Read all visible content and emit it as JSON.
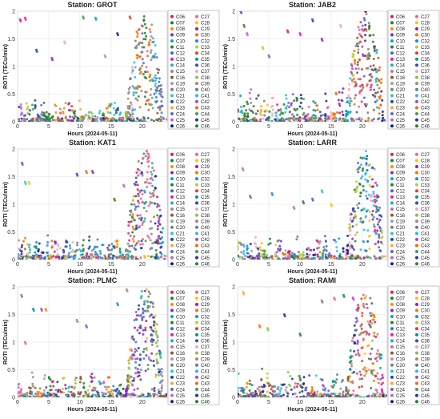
{
  "chart_data": {
    "type": "scatter",
    "xlabel": "Hours (2024-05-11)",
    "ylabel": "ROTI (TECu/min)",
    "xlim": [
      0,
      24
    ],
    "ylim": [
      0,
      2
    ],
    "xticks": [
      0,
      5,
      10,
      15,
      20
    ],
    "yticks": [
      0,
      0.5,
      1,
      1.5,
      2
    ],
    "grid": true,
    "legend_position": "right",
    "legend_columns": 2,
    "panels": [
      {
        "title": "Station: GROT",
        "quiet_level": 0.3,
        "storm_peak": 1.95,
        "outliers": [
          [
            0.4,
            1.85
          ],
          [
            1.2,
            1.88
          ],
          [
            3.0,
            1.3
          ],
          [
            5.5,
            1.15
          ],
          [
            7.5,
            1.45
          ],
          [
            10.5,
            1.9
          ],
          [
            12.5,
            1.88
          ],
          [
            14.0,
            1.2
          ],
          [
            16.0,
            1.6
          ],
          [
            18.0,
            1.9
          ]
        ]
      },
      {
        "title": "Station: JAB2",
        "quiet_level": 0.5,
        "storm_peak": 2.0,
        "outliers": [
          [
            0.5,
            2.0
          ],
          [
            1.0,
            1.75
          ],
          [
            1.5,
            1.6
          ],
          [
            4.0,
            1.35
          ],
          [
            5.0,
            1.2
          ],
          [
            8.0,
            1.65
          ],
          [
            10.0,
            1.6
          ],
          [
            12.0,
            1.85
          ],
          [
            13.5,
            1.5
          ],
          [
            16.5,
            1.75
          ]
        ]
      },
      {
        "title": "Station: KAT1",
        "quiet_level": 0.35,
        "storm_peak": 2.0,
        "outliers": [
          [
            0.7,
            1.75
          ],
          [
            1.2,
            1.4
          ],
          [
            1.8,
            1.4
          ],
          [
            9.5,
            1.55
          ],
          [
            11.0,
            1.6
          ],
          [
            12.0,
            1.6
          ],
          [
            15.5,
            1.1
          ],
          [
            17.0,
            1.35
          ]
        ]
      },
      {
        "title": "Station: LARR",
        "quiet_level": 0.35,
        "storm_peak": 2.0,
        "outliers": [
          [
            0.8,
            1.65
          ],
          [
            2.0,
            1.15
          ],
          [
            5.5,
            1.2
          ],
          [
            9.0,
            0.95
          ],
          [
            10.5,
            1.05
          ],
          [
            12.0,
            1.1
          ],
          [
            13.5,
            1.25
          ],
          [
            15.0,
            1.0
          ]
        ]
      },
      {
        "title": "Station: PLMC",
        "quiet_level": 0.35,
        "storm_peak": 2.0,
        "outliers": [
          [
            0.6,
            1.85
          ],
          [
            1.2,
            1.0
          ],
          [
            2.5,
            1.6
          ],
          [
            3.8,
            1.6
          ],
          [
            4.5,
            1.6
          ],
          [
            9.5,
            1.4
          ],
          [
            11.0,
            1.3
          ],
          [
            16.0,
            1.7
          ],
          [
            17.5,
            1.95
          ]
        ]
      },
      {
        "title": "Station: RAMI",
        "quiet_level": 0.4,
        "storm_peak": 1.9,
        "outliers": [
          [
            0.9,
            1.9
          ],
          [
            3.5,
            1.3
          ],
          [
            4.8,
            1.25
          ],
          [
            7.5,
            1.5
          ],
          [
            10.0,
            1.15
          ],
          [
            13.5,
            1.75
          ],
          [
            15.5,
            1.8
          ],
          [
            17.0,
            1.85
          ],
          [
            18.5,
            1.8
          ]
        ]
      }
    ],
    "legend_entries": [
      {
        "name": "C06",
        "color": "#e6194b"
      },
      {
        "name": "C07",
        "color": "#0b8a2e"
      },
      {
        "name": "C08",
        "color": "#ff8c00"
      },
      {
        "name": "C09",
        "color": "#7b2fbf"
      },
      {
        "name": "C10",
        "color": "#00a7c4"
      },
      {
        "name": "C11",
        "color": "#2e7d32"
      },
      {
        "name": "C12",
        "color": "#4363d8"
      },
      {
        "name": "C13",
        "color": "#ff1493"
      },
      {
        "name": "C14",
        "color": "#1fb5ad"
      },
      {
        "name": "C15",
        "color": "#b07aa1"
      },
      {
        "name": "C16",
        "color": "#8b5a2b"
      },
      {
        "name": "C19",
        "color": "#9aa0a6"
      },
      {
        "name": "C20",
        "color": "#7f7f7f"
      },
      {
        "name": "C21",
        "color": "#26c6da"
      },
      {
        "name": "C22",
        "color": "#1b4f9c"
      },
      {
        "name": "C23",
        "color": "#ffa726"
      },
      {
        "name": "C24",
        "color": "#5c6bc0"
      },
      {
        "name": "C25",
        "color": "#ba68c8"
      },
      {
        "name": "C26",
        "color": "#1a237e"
      },
      {
        "name": "C27",
        "color": "#f06292"
      },
      {
        "name": "C28",
        "color": "#ffc107"
      },
      {
        "name": "C29",
        "color": "#8e24aa"
      },
      {
        "name": "C30",
        "color": "#ff6f00"
      },
      {
        "name": "C32",
        "color": "#1e88e5"
      },
      {
        "name": "C33",
        "color": "#c0ca33"
      },
      {
        "name": "C34",
        "color": "#e53935"
      },
      {
        "name": "C35",
        "color": "#009688"
      },
      {
        "name": "C36",
        "color": "#3949ab"
      },
      {
        "name": "C37",
        "color": "#f4a6c1"
      },
      {
        "name": "C38",
        "color": "#8bc34a"
      },
      {
        "name": "C39",
        "color": "#a1887f"
      },
      {
        "name": "C40",
        "color": "#607d8b"
      },
      {
        "name": "C41",
        "color": "#29b6f6"
      },
      {
        "name": "C42",
        "color": "#ab47bc"
      },
      {
        "name": "C43",
        "color": "#ef6c00"
      },
      {
        "name": "C44",
        "color": "#43a047"
      },
      {
        "name": "C45",
        "color": "#283593"
      },
      {
        "name": "C46",
        "color": "#2e7d32"
      }
    ]
  }
}
